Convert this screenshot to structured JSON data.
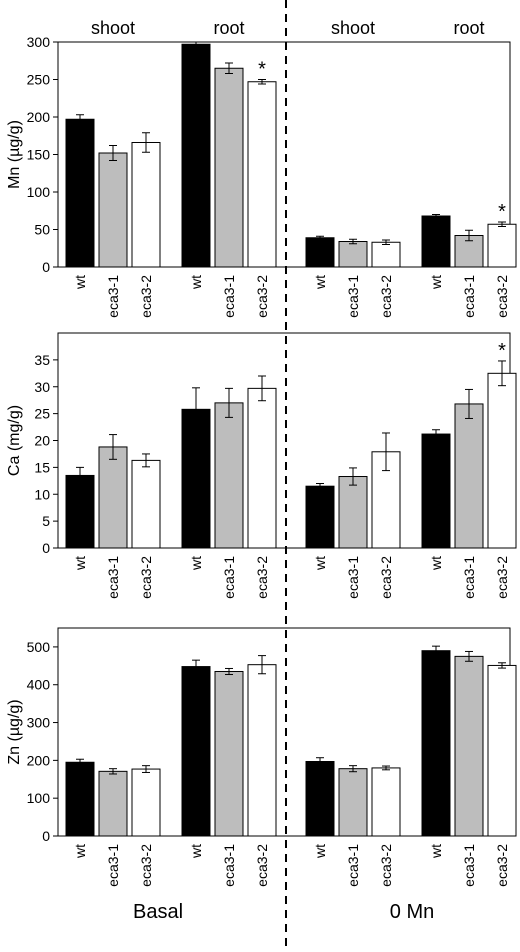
{
  "chart_data": [
    {
      "type": "bar",
      "ylabel": "Mn (µg/g)",
      "ylim": [
        0,
        300
      ],
      "yticks": [
        0,
        50,
        100,
        150,
        200,
        250,
        300
      ],
      "group_labels": [
        "shoot",
        "root",
        "shoot",
        "root"
      ],
      "categories": [
        "wt",
        "eca3-1",
        "eca3-2"
      ],
      "colors": [
        "#000000",
        "#bdbdbd",
        "#ffffff"
      ],
      "groups": [
        {
          "values": [
            197,
            152,
            166
          ],
          "errors": [
            6,
            10,
            13
          ],
          "stars": [
            false,
            false,
            false
          ]
        },
        {
          "values": [
            297,
            265,
            247
          ],
          "errors": [
            3,
            7,
            3
          ],
          "stars": [
            false,
            false,
            true
          ]
        },
        {
          "values": [
            39,
            34,
            33
          ],
          "errors": [
            2,
            3,
            3
          ],
          "stars": [
            false,
            false,
            false
          ]
        },
        {
          "values": [
            68,
            42,
            57
          ],
          "errors": [
            2,
            7,
            3
          ],
          "stars": [
            false,
            false,
            true
          ]
        }
      ]
    },
    {
      "type": "bar",
      "ylabel": "Ca (mg/g)",
      "ylim": [
        0,
        40
      ],
      "yticks": [
        0,
        5,
        10,
        15,
        20,
        25,
        30,
        35
      ],
      "categories": [
        "wt",
        "eca3-1",
        "eca3-2"
      ],
      "colors": [
        "#000000",
        "#bdbdbd",
        "#ffffff"
      ],
      "groups": [
        {
          "values": [
            13.5,
            18.8,
            16.3
          ],
          "errors": [
            1.5,
            2.3,
            1.2
          ],
          "stars": [
            false,
            false,
            false
          ]
        },
        {
          "values": [
            25.8,
            27.0,
            29.7
          ],
          "errors": [
            4.0,
            2.7,
            2.3
          ],
          "stars": [
            false,
            false,
            false
          ]
        },
        {
          "values": [
            11.5,
            13.3,
            17.9
          ],
          "errors": [
            0.5,
            1.6,
            3.5
          ],
          "stars": [
            false,
            false,
            false
          ]
        },
        {
          "values": [
            21.2,
            26.8,
            32.5
          ],
          "errors": [
            0.8,
            2.7,
            2.3
          ],
          "stars": [
            false,
            false,
            true
          ]
        }
      ]
    },
    {
      "type": "bar",
      "ylabel": "Zn (µg/g)",
      "ylim": [
        0,
        550
      ],
      "yticks": [
        0,
        100,
        200,
        300,
        400,
        500
      ],
      "categories": [
        "wt",
        "eca3-1",
        "eca3-2"
      ],
      "colors": [
        "#000000",
        "#bdbdbd",
        "#ffffff"
      ],
      "groups": [
        {
          "values": [
            195,
            171,
            177
          ],
          "errors": [
            8,
            7,
            9
          ],
          "stars": [
            false,
            false,
            false
          ]
        },
        {
          "values": [
            448,
            435,
            453
          ],
          "errors": [
            17,
            8,
            24
          ],
          "stars": [
            false,
            false,
            false
          ]
        },
        {
          "values": [
            197,
            178,
            180
          ],
          "errors": [
            10,
            8,
            5
          ],
          "stars": [
            false,
            false,
            false
          ]
        },
        {
          "values": [
            490,
            475,
            451
          ],
          "errors": [
            12,
            13,
            7
          ],
          "stars": [
            false,
            false,
            false
          ]
        }
      ]
    }
  ],
  "condition_labels": [
    "Basal",
    "0 Mn"
  ],
  "star_symbol": "*"
}
